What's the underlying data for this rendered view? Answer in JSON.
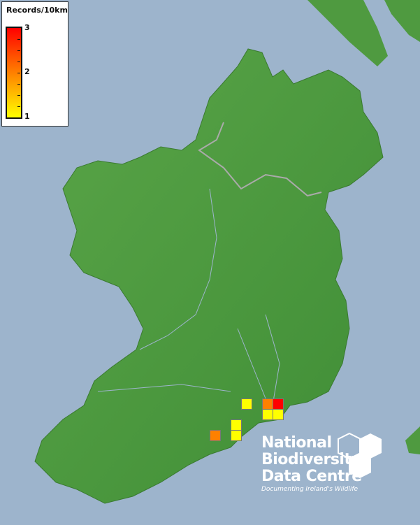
{
  "legend": {
    "title": "Records/10km",
    "max_label": "3",
    "mid_label": "2",
    "min_label": "1",
    "colors": {
      "low": "#ffff00",
      "mid": "#ff8000",
      "high": "#ff0000"
    }
  },
  "records": [
    {
      "count": 1,
      "color": "#ffff00"
    },
    {
      "count": 2,
      "color": "#ff8000"
    },
    {
      "count": 3,
      "color": "#ff0000"
    },
    {
      "count": 1,
      "color": "#ffff00"
    },
    {
      "count": 1,
      "color": "#ffff00"
    },
    {
      "count": 1,
      "color": "#ffff00"
    },
    {
      "count": 1,
      "color": "#ffff00"
    },
    {
      "count": 2,
      "color": "#ff8000"
    }
  ],
  "logo": {
    "line1": "National",
    "line2": "Biodiversity",
    "line3": "Data Centre",
    "tagline": "Documenting Ireland's Wildlife"
  },
  "colors": {
    "sea": "#9db4cc",
    "land": "#4f9a40"
  }
}
